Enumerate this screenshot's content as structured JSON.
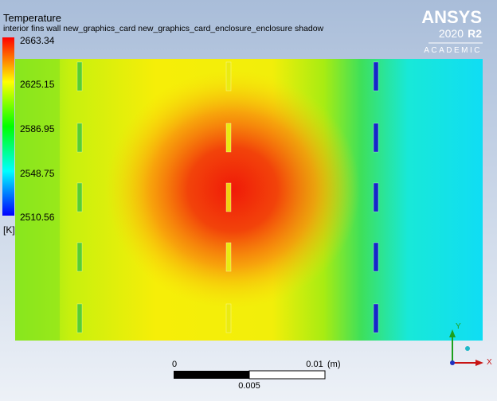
{
  "legend": {
    "title": "Temperature",
    "subtitle": "interior fins wall new_graphics_card new_graphics_card_enclosure_enclosure shadow",
    "levels": [
      "2663.34",
      "2625.15",
      "2586.95",
      "2548.75",
      "2510.56"
    ],
    "unit": "[K]"
  },
  "logo": {
    "brand": "ANSYS",
    "version": "2020",
    "release": "R2",
    "edition": "ACADEMIC"
  },
  "scale_bar": {
    "start": "0",
    "end": "0.01",
    "unit": "(m)",
    "middle": "0.005"
  },
  "triad": {
    "y": "Y",
    "x": "X"
  }
}
